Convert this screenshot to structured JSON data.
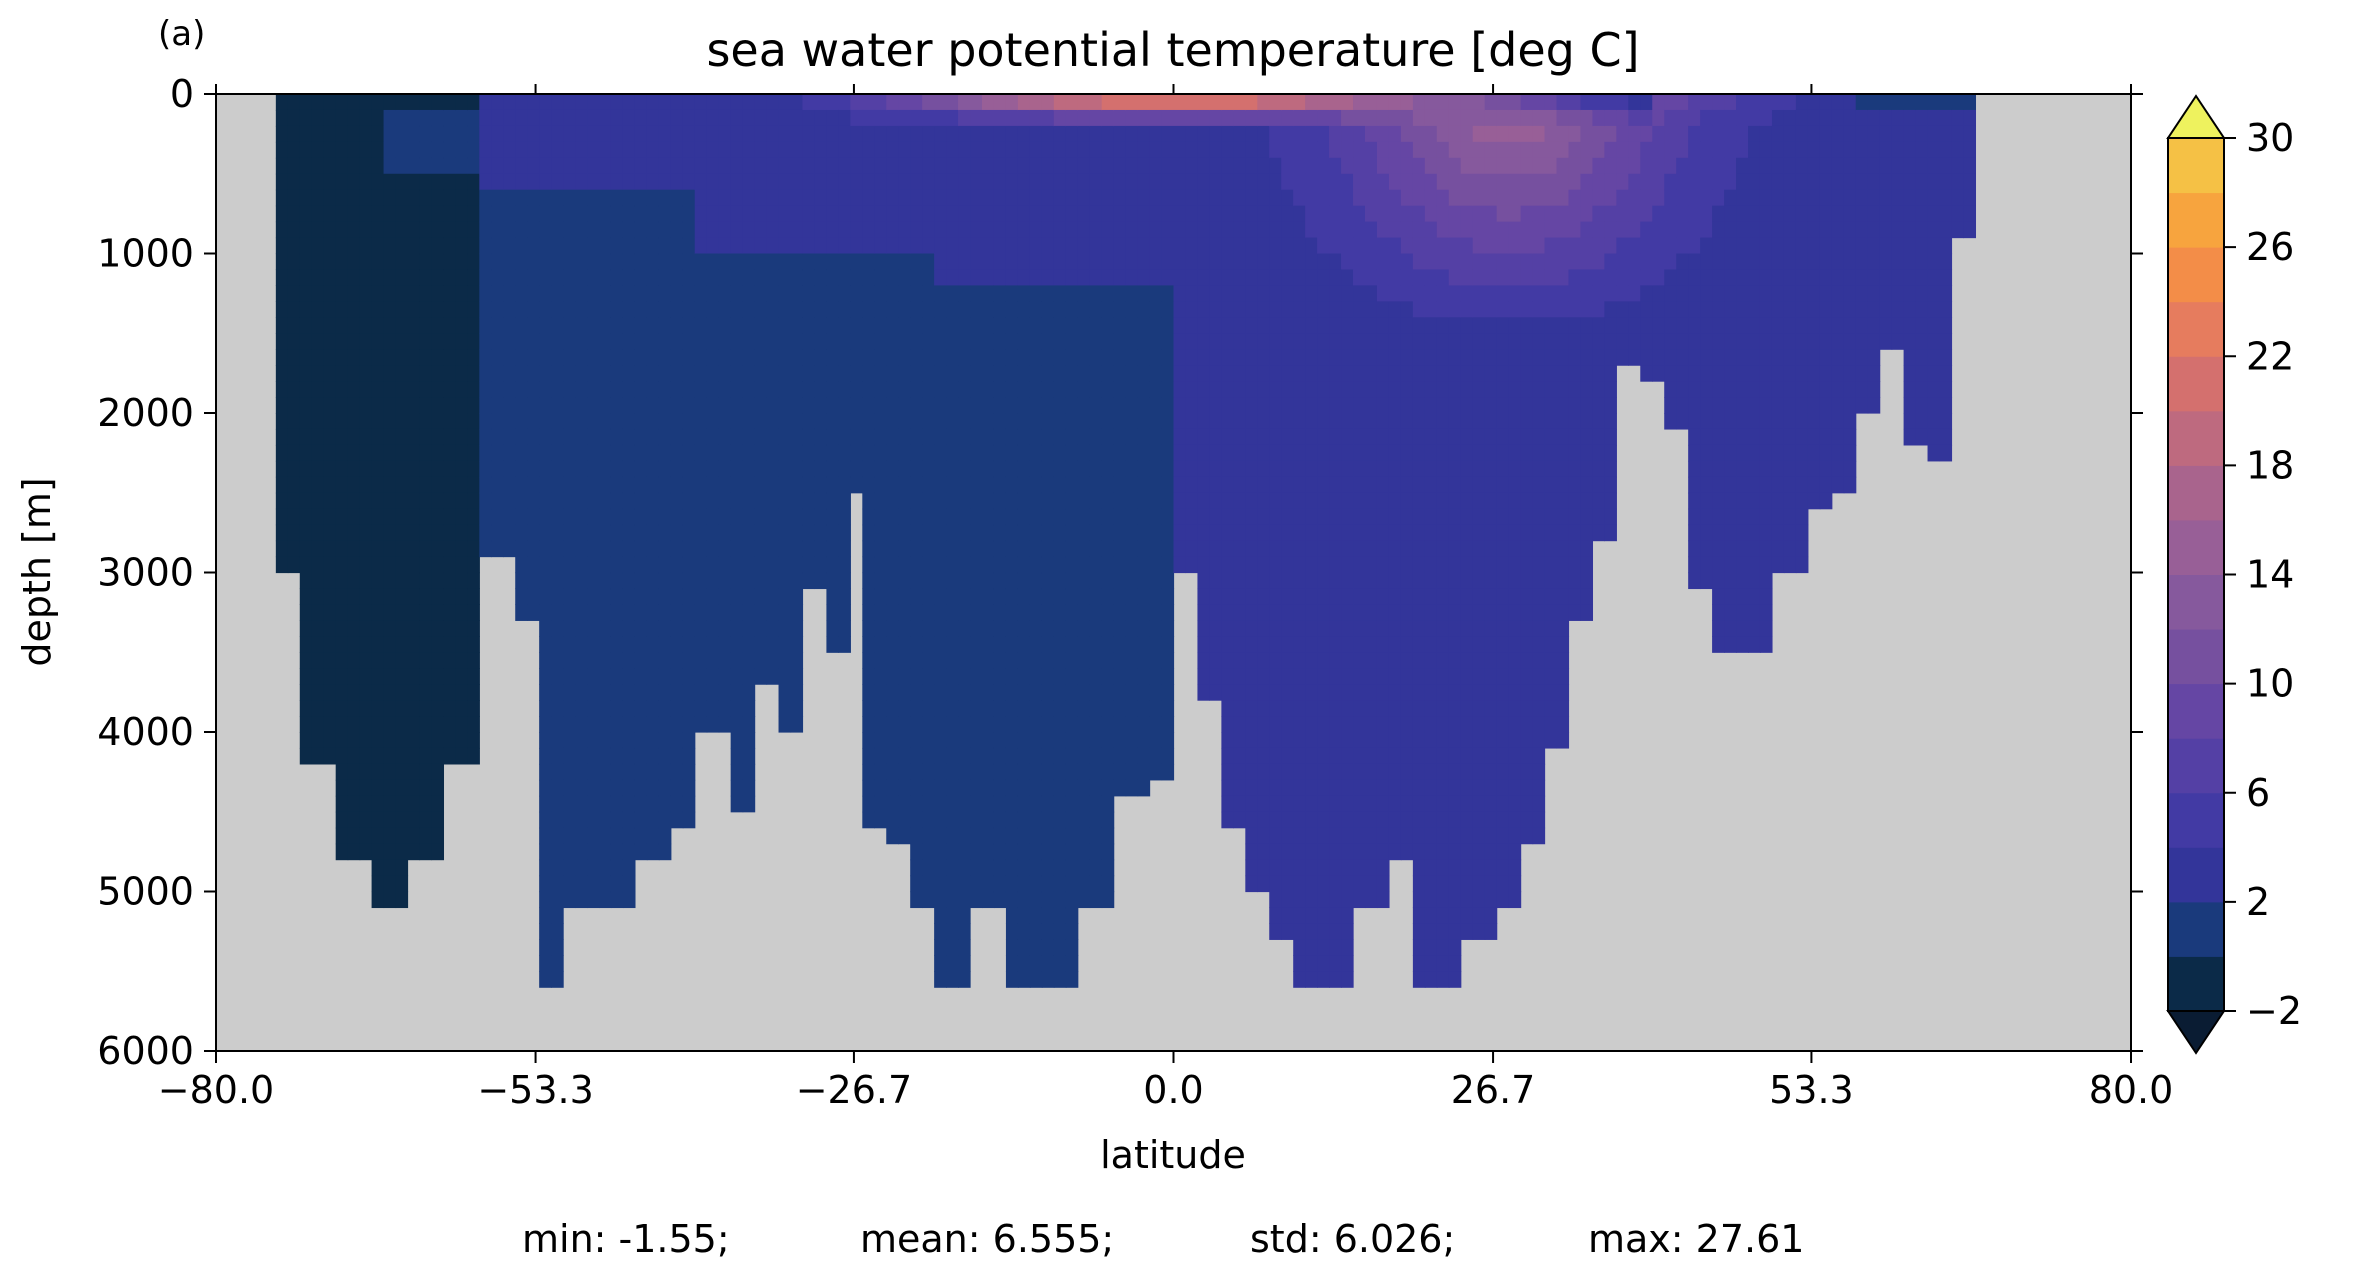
{
  "chart_data": {
    "type": "heatmap",
    "panel_label": "(a)",
    "title": "sea water potential temperature [deg C]",
    "xlabel": "latitude",
    "ylabel": "depth [m]",
    "xlim": [
      -80.0,
      80.0
    ],
    "ylim": [
      6000,
      0
    ],
    "y_inverted": true,
    "x_ticks": [
      -80.0,
      -53.3,
      -26.7,
      0.0,
      26.7,
      53.3,
      80.0
    ],
    "x_tick_labels": [
      "−80.0",
      "−53.3",
      "−26.7",
      "0.0",
      "26.7",
      "53.3",
      "80.0"
    ],
    "y_ticks": [
      0,
      1000,
      2000,
      3000,
      4000,
      5000,
      6000
    ],
    "y_tick_labels": [
      "0",
      "1000",
      "2000",
      "3000",
      "4000",
      "5000",
      "6000"
    ],
    "colorbar": {
      "levels": [
        -2,
        0,
        2,
        4,
        6,
        8,
        10,
        12,
        14,
        16,
        18,
        20,
        22,
        24,
        26,
        28,
        30
      ],
      "tick_values": [
        -2,
        2,
        6,
        10,
        14,
        18,
        22,
        26,
        30
      ],
      "tick_labels": [
        "−2",
        "2",
        "6",
        "10",
        "14",
        "18",
        "22",
        "26",
        "30"
      ],
      "colors": [
        "#0b2a48",
        "#1a3a7c",
        "#33359a",
        "#423aa4",
        "#5440a5",
        "#6546a4",
        "#76509f",
        "#86599d",
        "#985f97",
        "#a9648d",
        "#be6a7f",
        "#d4706e",
        "#e67c5e",
        "#f38d48",
        "#f7a43e",
        "#f5c145",
        "#eee553"
      ],
      "extend": "both",
      "under_color": "#0a1c33",
      "over_color": "#eef25e"
    },
    "land_color": "#cccccc",
    "bathymetry_bottom_depth": {
      "latitude": [
        -75,
        -73,
        -70,
        -67,
        -64,
        -61,
        -58,
        -55,
        -53.3,
        -51,
        -48,
        -45,
        -42,
        -40,
        -37,
        -35,
        -33,
        -31,
        -29,
        -27.5,
        -26,
        -24,
        -22,
        -20,
        -17,
        -14,
        -11,
        -8,
        -5,
        -2,
        0,
        2,
        4,
        6,
        8,
        10,
        12,
        15,
        18,
        20,
        22,
        24,
        26.7,
        29,
        31,
        33,
        35,
        37,
        39,
        41,
        43,
        45,
        48,
        50,
        53,
        55,
        57,
        59,
        61,
        63,
        65,
        67
      ],
      "depth": [
        3000,
        4200,
        4800,
        5100,
        4800,
        4200,
        2900,
        3300,
        5600,
        5100,
        5100,
        4800,
        4600,
        4000,
        4500,
        3700,
        4000,
        3100,
        3500,
        2500,
        4600,
        4700,
        5100,
        5600,
        5100,
        5600,
        5600,
        5100,
        4400,
        4300,
        3000,
        3800,
        4600,
        5000,
        5300,
        5600,
        5600,
        5100,
        4800,
        5600,
        5600,
        5300,
        5100,
        4700,
        4100,
        3300,
        2800,
        1700,
        1800,
        2100,
        3100,
        3500,
        3500,
        3000,
        2600,
        2500,
        2000,
        1600,
        2200,
        2300,
        900,
        300
      ]
    },
    "stats": {
      "min_label": "min: -1.55;",
      "mean_label": "mean: 6.555;",
      "std_label": "std: 6.026;",
      "max_label": "max: 27.61"
    }
  }
}
